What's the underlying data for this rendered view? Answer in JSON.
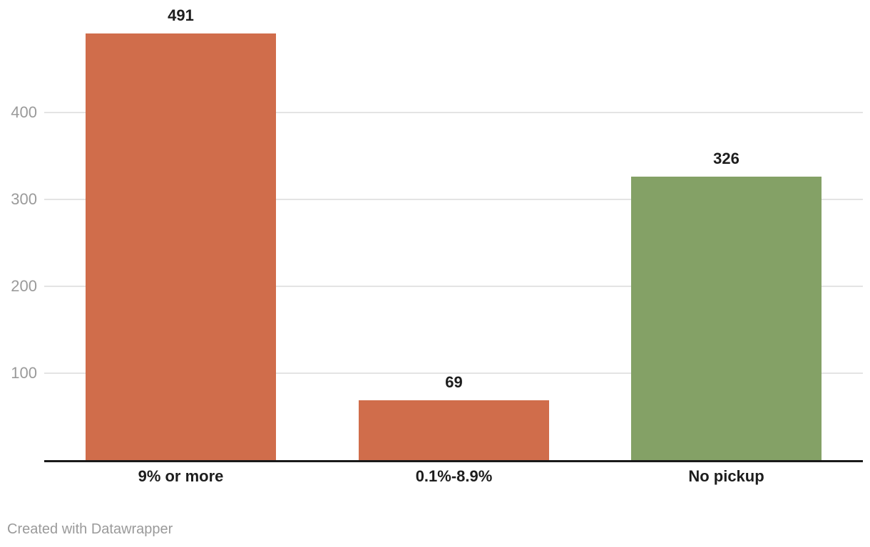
{
  "chart_data": {
    "type": "bar",
    "title": "",
    "xlabel": "",
    "ylabel": "",
    "categories": [
      "9% or more",
      "0.1%-8.9%",
      "No pickup"
    ],
    "values": [
      491,
      69,
      326
    ],
    "value_labels": [
      "491",
      "69",
      "326"
    ],
    "bar_colors": [
      "#d06d4b",
      "#d06d4b",
      "#84a166"
    ],
    "y_ticks": [
      100,
      200,
      300,
      400
    ],
    "y_tick_labels": [
      "100",
      "200",
      "300",
      "400"
    ],
    "ylim": [
      0,
      500
    ],
    "grid": true,
    "legend": "none"
  },
  "colors": {
    "bar_orange": "#d06d4b",
    "bar_green": "#84a166",
    "gridline": "#e4e4e4",
    "axis_line": "#1a1a1a",
    "tick_text": "#9a9a9a",
    "label_text": "#1d1d1d",
    "credit_text": "#9a9a9a"
  },
  "footer": {
    "credit": "Created with Datawrapper"
  }
}
